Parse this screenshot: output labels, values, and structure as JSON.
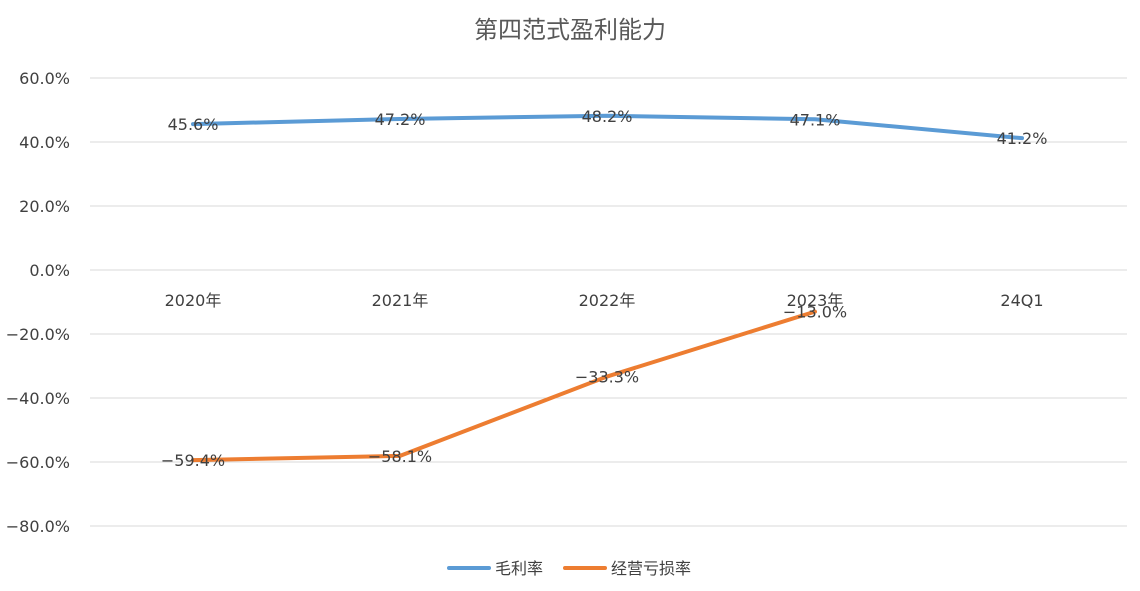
{
  "chart_data": {
    "type": "line",
    "title": "第四范式盈利能力",
    "categories": [
      "2020年",
      "2021年",
      "2022年",
      "2023年",
      "24Q1"
    ],
    "y_ticks": [
      "60.0%",
      "40.0%",
      "20.0%",
      "0.0%",
      "−20.0%",
      "−40.0%",
      "−60.0%",
      "−80.0%"
    ],
    "ylim": [
      -80,
      60
    ],
    "grid": true,
    "legend_position": "bottom",
    "series": [
      {
        "name": "毛利率",
        "color": "#5b9bd5",
        "values": [
          45.6,
          47.2,
          48.2,
          47.1,
          41.2
        ],
        "labels": [
          "45.6%",
          "47.2%",
          "48.2%",
          "47.1%",
          "41.2%"
        ]
      },
      {
        "name": "经营亏损率",
        "color": "#ed7d31",
        "values": [
          -59.4,
          -58.1,
          -33.3,
          -13.0,
          null
        ],
        "labels": [
          "−59.4%",
          "−58.1%",
          "−33.3%",
          "−13.0%",
          null
        ]
      }
    ]
  }
}
